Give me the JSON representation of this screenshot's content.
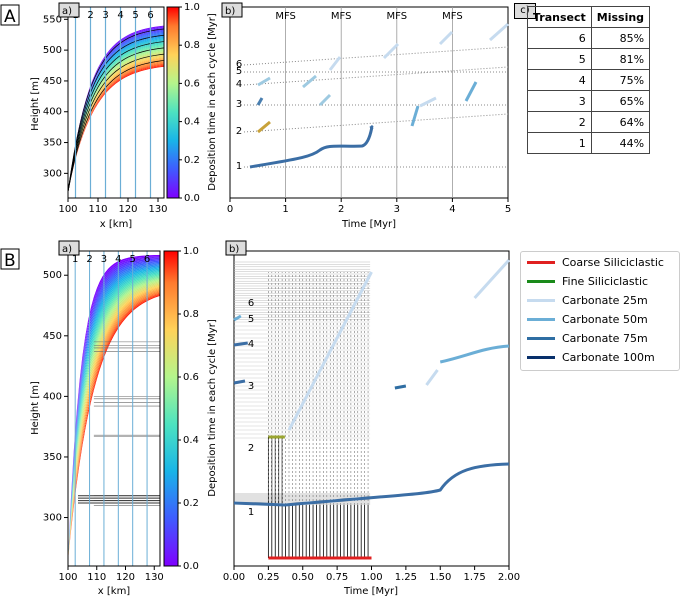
{
  "panel_labels": {
    "A": "A",
    "B": "B"
  },
  "sub_labels": {
    "a": "a)",
    "b": "b)",
    "c": "c)"
  },
  "colorbar": {
    "label": "Deposition time in each cycle [Myr]",
    "ticks": [
      "0.0",
      "0.2",
      "0.4",
      "0.6",
      "0.8",
      "1.0"
    ]
  },
  "chart_data": [
    {
      "id": "A-a",
      "type": "area",
      "xlabel": "x [km]",
      "ylabel": "Height [m]",
      "xlim": [
        100,
        132
      ],
      "ylim": [
        260,
        570
      ],
      "xticks": [
        "100",
        "110",
        "120",
        "130"
      ],
      "yticks": [
        "300",
        "350",
        "400",
        "450",
        "500",
        "550"
      ],
      "transects": [
        "1",
        "2",
        "3",
        "4",
        "5",
        "6"
      ],
      "transect_x": [
        102.5,
        107.5,
        112.5,
        117.5,
        122.5,
        127.5
      ]
    },
    {
      "id": "A-b",
      "type": "line",
      "xlabel": "Time [Myr]",
      "ylabel": "Deposition time in each cycle [Myr]",
      "xlim": [
        0,
        5
      ],
      "xticks": [
        "0",
        "1",
        "2",
        "3",
        "4",
        "5"
      ],
      "mfs_labels": [
        "MFS",
        "MFS",
        "MFS",
        "MFS"
      ],
      "mfs_x": [
        1,
        2,
        3,
        4
      ],
      "transect_labels": [
        "1",
        "2",
        "3",
        "4",
        "5",
        "6"
      ]
    },
    {
      "id": "A-c",
      "type": "table",
      "columns": [
        "Transect",
        "Missing"
      ],
      "rows": [
        [
          "6",
          "85%"
        ],
        [
          "5",
          "81%"
        ],
        [
          "4",
          "75%"
        ],
        [
          "3",
          "65%"
        ],
        [
          "2",
          "64%"
        ],
        [
          "1",
          "44%"
        ]
      ]
    },
    {
      "id": "B-a",
      "type": "area",
      "xlabel": "x [km]",
      "ylabel": "Height [m]",
      "xlim": [
        100,
        132
      ],
      "ylim": [
        260,
        520
      ],
      "xticks": [
        "100",
        "110",
        "120",
        "130"
      ],
      "yticks": [
        "300",
        "350",
        "400",
        "450",
        "500"
      ],
      "transects": [
        "1",
        "2",
        "3",
        "4",
        "5",
        "6"
      ]
    },
    {
      "id": "B-b",
      "type": "line",
      "xlabel": "Time [Myr]",
      "ylabel": "Deposition time in each cycle [Myr]",
      "xlim": [
        0,
        2
      ],
      "xticks": [
        "0.00",
        "0.25",
        "0.50",
        "0.75",
        "1.00",
        "1.25",
        "1.50",
        "1.75",
        "2.00"
      ],
      "transect_labels": [
        "1",
        "2",
        "3",
        "4",
        "5",
        "6"
      ]
    }
  ],
  "legend": [
    {
      "label": "Coarse Siliciclastic",
      "color": "#e02020"
    },
    {
      "label": "Fine Siliciclastic",
      "color": "#1a8a1a"
    },
    {
      "label": "Carbonate 25m",
      "color": "#c6dbef"
    },
    {
      "label": "Carbonate 50m",
      "color": "#6baed6"
    },
    {
      "label": "Carbonate 75m",
      "color": "#2f6ea3"
    },
    {
      "label": "Carbonate 100m",
      "color": "#08306b"
    }
  ]
}
